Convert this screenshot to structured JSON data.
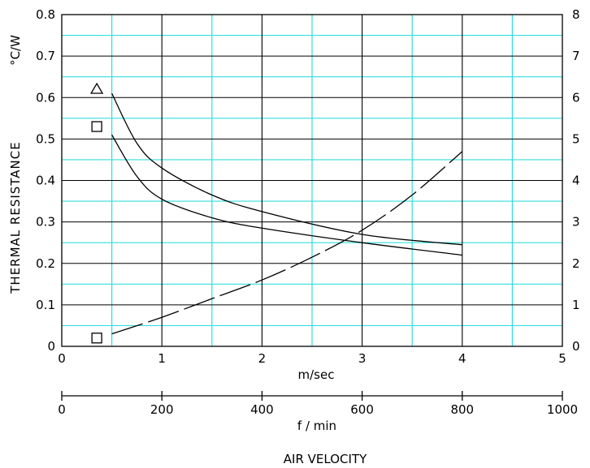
{
  "chart_data": {
    "type": "line",
    "title": "",
    "ylabel": "THERMAL RESISTANCE",
    "y_unit": "°C/W",
    "xlabel_primary": "m/sec",
    "xlabel_secondary": "f / min",
    "xlabel_footer": "AIR VELOCITY",
    "xlim": [
      0,
      5
    ],
    "ylim_left": [
      0,
      0.8
    ],
    "ylim_right": [
      0,
      8
    ],
    "secondary_xlim": [
      0,
      1000
    ],
    "x_ticks": [
      "0",
      "1",
      "2",
      "3",
      "4",
      "5"
    ],
    "y_ticks_left": [
      "0",
      "0.1",
      "0.2",
      "0.3",
      "0.4",
      "0.5",
      "0.6",
      "0.7",
      "0.8"
    ],
    "y_ticks_right": [
      "0",
      "1",
      "2",
      "3",
      "4",
      "5",
      "6",
      "7",
      "8"
    ],
    "secondary_x_ticks": [
      "0",
      "200",
      "400",
      "600",
      "800",
      "1000"
    ],
    "grid": true,
    "colors": {
      "major_grid": "#000000",
      "minor_grid": "#33dddd",
      "line": "#000000"
    },
    "series": [
      {
        "marker": "triangle",
        "marker_value": [
          0.35,
          0.62
        ],
        "axis": "left",
        "style": "solid",
        "x": [
          0.5,
          0.75,
          1.0,
          1.5,
          2.0,
          3.0,
          4.0
        ],
        "y": [
          0.61,
          0.49,
          0.43,
          0.365,
          0.325,
          0.27,
          0.245
        ]
      },
      {
        "marker": "square",
        "marker_value": [
          0.35,
          0.53
        ],
        "axis": "left",
        "style": "solid",
        "x": [
          0.5,
          0.75,
          1.0,
          1.5,
          2.0,
          3.0,
          4.0
        ],
        "y": [
          0.51,
          0.41,
          0.355,
          0.31,
          0.285,
          0.25,
          0.22
        ]
      },
      {
        "marker": "square",
        "marker_value": [
          0.35,
          0.2
        ],
        "axis": "right",
        "style": "dashed",
        "x": [
          0.5,
          1.0,
          1.5,
          2.0,
          2.5,
          3.0,
          3.5,
          4.0
        ],
        "y": [
          0.3,
          0.7,
          1.15,
          1.6,
          2.15,
          2.8,
          3.65,
          4.7
        ]
      }
    ]
  }
}
